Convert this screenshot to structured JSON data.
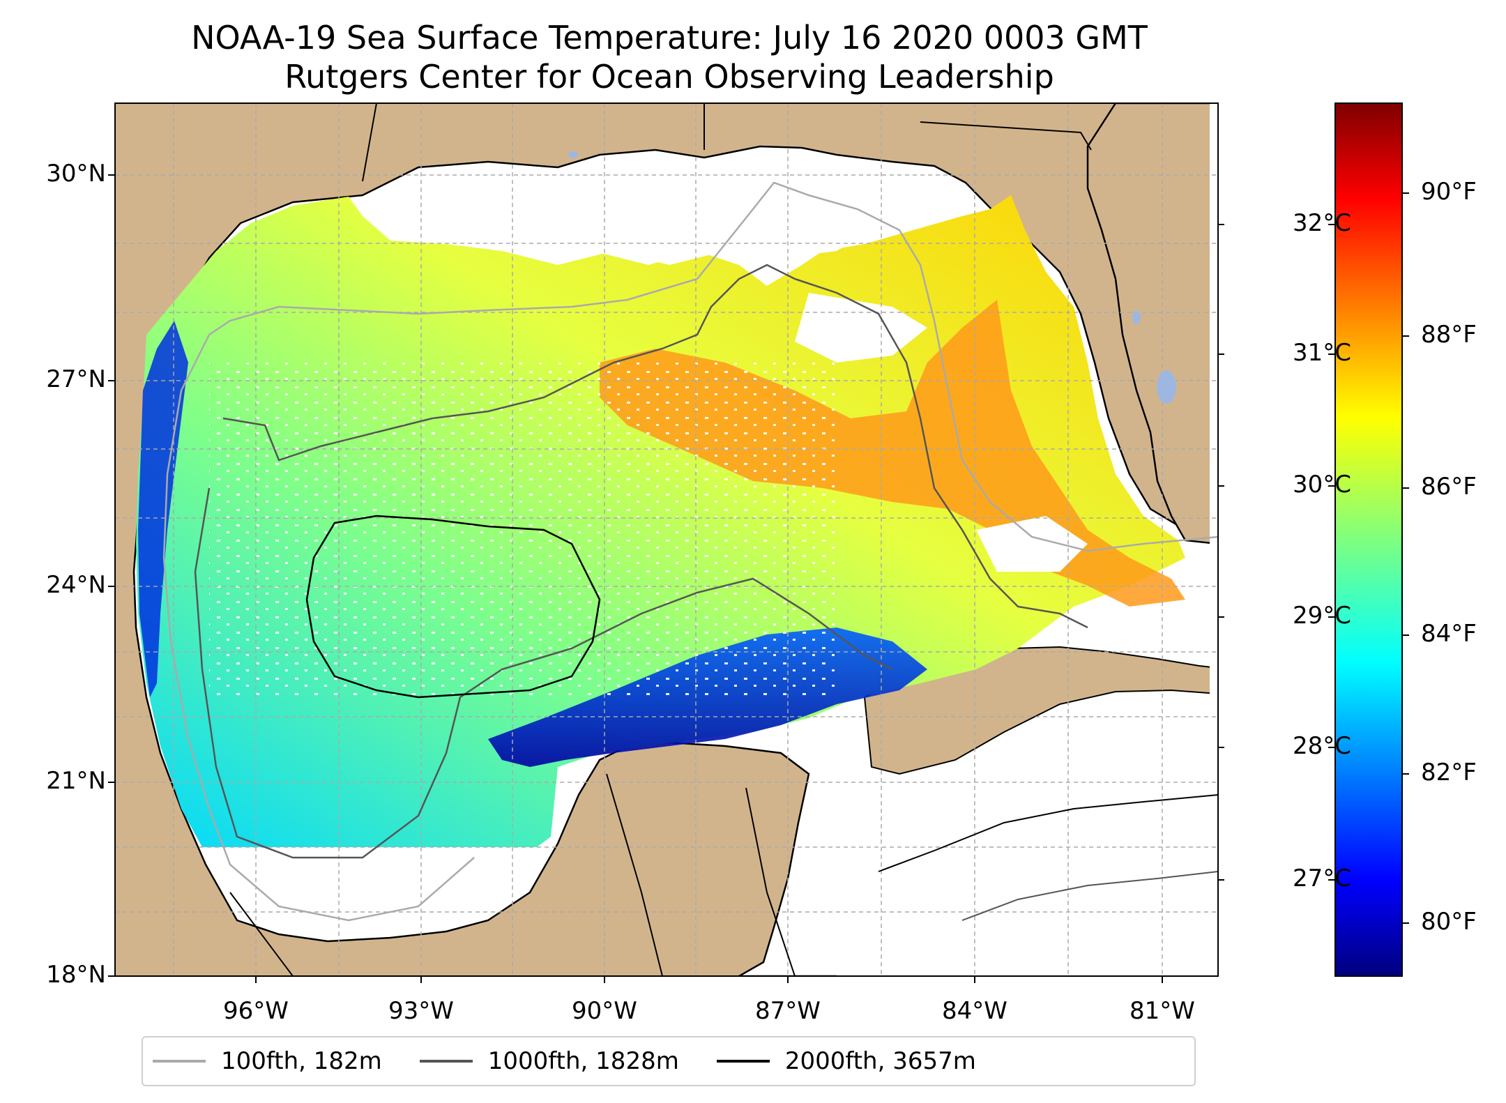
{
  "title": {
    "line1": "NOAA-19 Sea Surface Temperature: July 16 2020 0003 GMT",
    "line2": "Rutgers Center for Ocean Observing Leadership"
  },
  "axes": {
    "lat_ticks": [
      "30°N",
      "27°N",
      "24°N",
      "21°N",
      "18°N"
    ],
    "lon_ticks": [
      "96°W",
      "93°W",
      "90°W",
      "87°W",
      "84°W",
      "81°W"
    ]
  },
  "colorbar": {
    "celsius_ticks": [
      "32°C",
      "31°C",
      "30°C",
      "29°C",
      "28°C",
      "27°C"
    ],
    "fahrenheit_ticks": [
      "90°F",
      "88°F",
      "86°F",
      "84°F",
      "82°F",
      "80°F"
    ],
    "colormap": "jet",
    "colors": [
      "#00007f",
      "#0000ff",
      "#007fff",
      "#00ffff",
      "#7fff7f",
      "#ffff00",
      "#ff7f00",
      "#ff0000",
      "#7f0000"
    ]
  },
  "legend": [
    {
      "label": "100fth, 182m",
      "color": "#aaaaaa"
    },
    {
      "label": "1000fth, 1828m",
      "color": "#555555"
    },
    {
      "label": "2000fth, 3657m",
      "color": "#000000"
    }
  ],
  "map_colors": {
    "land": "#d2b48c",
    "lakes": "#9db7e0",
    "water_nodata": "#ffffff"
  }
}
